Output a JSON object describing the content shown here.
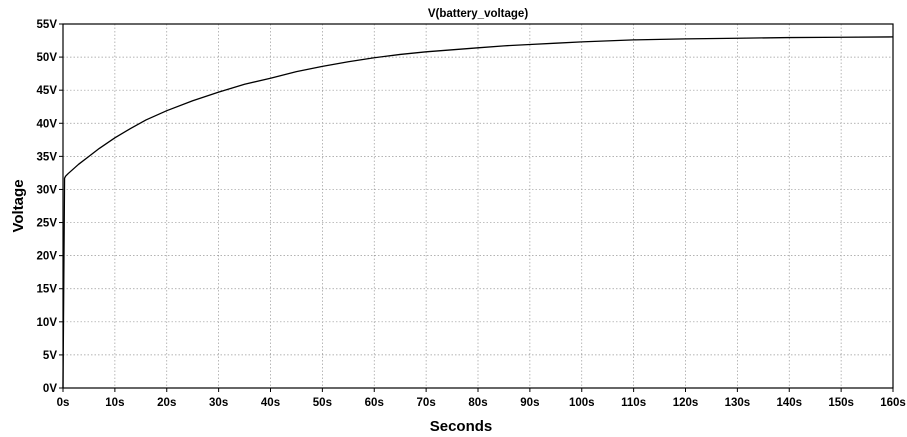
{
  "chart_data": {
    "type": "line",
    "title": "V(battery_voltage)",
    "xlabel": "Seconds",
    "ylabel": "Voltage",
    "xlim": [
      0,
      160
    ],
    "ylim": [
      0,
      55
    ],
    "grid": true,
    "x_ticks": [
      0,
      10,
      20,
      30,
      40,
      50,
      60,
      70,
      80,
      90,
      100,
      110,
      120,
      130,
      140,
      150,
      160
    ],
    "x_tick_labels": [
      "0s",
      "10s",
      "20s",
      "30s",
      "40s",
      "50s",
      "60s",
      "70s",
      "80s",
      "90s",
      "100s",
      "110s",
      "120s",
      "130s",
      "140s",
      "150s",
      "160s"
    ],
    "y_ticks": [
      0,
      5,
      10,
      15,
      20,
      25,
      30,
      35,
      40,
      45,
      50,
      55
    ],
    "y_tick_labels": [
      "0V",
      "5V",
      "10V",
      "15V",
      "20V",
      "25V",
      "30V",
      "35V",
      "40V",
      "45V",
      "50V",
      "55V"
    ],
    "series": [
      {
        "color": "#000000",
        "x": [
          0,
          0.3,
          0.5,
          1,
          2,
          3,
          5,
          7,
          10,
          13,
          16,
          20,
          25,
          30,
          35,
          40,
          45,
          50,
          55,
          60,
          65,
          70,
          75,
          80,
          85,
          90,
          95,
          100,
          110,
          120,
          130,
          140,
          150,
          160
        ],
        "y": [
          0,
          31.7,
          32.0,
          32.4,
          33.1,
          33.8,
          35.0,
          36.2,
          37.8,
          39.2,
          40.5,
          41.9,
          43.4,
          44.7,
          45.9,
          46.8,
          47.8,
          48.6,
          49.3,
          49.9,
          50.4,
          50.8,
          51.1,
          51.4,
          51.7,
          51.9,
          52.1,
          52.3,
          52.6,
          52.75,
          52.85,
          52.95,
          53.0,
          53.05
        ]
      }
    ]
  }
}
